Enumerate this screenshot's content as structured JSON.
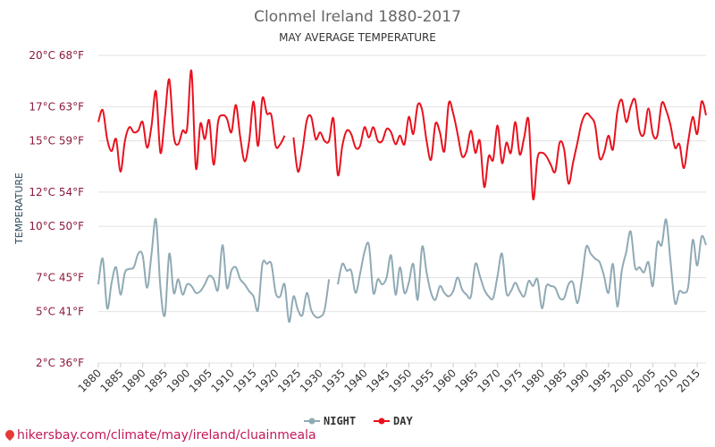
{
  "chart_data": {
    "type": "line",
    "title": "Clonmel Ireland 1880-2017",
    "subtitle": "MAY AVERAGE TEMPERATURE",
    "ylabel": "TEMPERATURE",
    "ylim": [
      2.0,
      20.0
    ],
    "y_ticks": [
      {
        "value": 20.0,
        "label": "20°C 68°F"
      },
      {
        "value": 17.0,
        "label": "17°C 63°F"
      },
      {
        "value": 15.0,
        "label": "15°C 59°F"
      },
      {
        "value": 12.0,
        "label": "12°C 54°F"
      },
      {
        "value": 10.0,
        "label": "10°C 50°F"
      },
      {
        "value": 7.0,
        "label": "7°C 45°F"
      },
      {
        "value": 5.0,
        "label": "5°C 41°F"
      },
      {
        "value": 2.0,
        "label": "2°C 36°F"
      }
    ],
    "xlim": [
      1880,
      2017
    ],
    "x_ticks": [
      "1880",
      "1885",
      "1890",
      "1895",
      "1900",
      "1905",
      "1910",
      "1915",
      "1920",
      "1925",
      "1930",
      "1935",
      "1940",
      "1945",
      "1950",
      "1955",
      "1960",
      "1965",
      "1970",
      "1975",
      "1980",
      "1985",
      "1990",
      "1995",
      "2000",
      "2005",
      "2010",
      "2015"
    ],
    "legend": {
      "position": "bottom"
    },
    "series": [
      {
        "name": "NIGHT",
        "color": "#90aab5",
        "x": [
          1880,
          1881,
          1882,
          1883,
          1884,
          1885,
          1886,
          1887,
          1888,
          1889,
          1890,
          1891,
          1892,
          1893,
          1894,
          1895,
          1896,
          1897,
          1898,
          1899,
          1900,
          1901,
          1902,
          1903,
          1904,
          1905,
          1906,
          1907,
          1908,
          1909,
          1910,
          1911,
          1912,
          1913,
          1914,
          1915,
          1916,
          1917,
          1918,
          1919,
          1920,
          1921,
          1922,
          1923,
          1924,
          1925,
          1926,
          1927,
          1928,
          1929,
          1930,
          1931,
          1932,
          1933,
          1934,
          1935,
          1936,
          1937,
          1938,
          1939,
          1940,
          1941,
          1942,
          1943,
          1944,
          1945,
          1946,
          1947,
          1948,
          1949,
          1950,
          1951,
          1952,
          1953,
          1954,
          1955,
          1956,
          1957,
          1958,
          1959,
          1960,
          1961,
          1962,
          1963,
          1964,
          1965,
          1966,
          1967,
          1968,
          1969,
          1970,
          1971,
          1972,
          1973,
          1974,
          1975,
          1976,
          1977,
          1978,
          1979,
          1980,
          1981,
          1982,
          1983,
          1984,
          1985,
          1986,
          1987,
          1988,
          1989,
          1990,
          1991,
          1992,
          1993,
          1994,
          1995,
          1996,
          1997,
          1998,
          1999,
          2000,
          2001,
          2002,
          2003,
          2004,
          2005,
          2006,
          2007,
          2008,
          2009,
          2010,
          2011,
          2012,
          2013,
          2014,
          2015,
          2016,
          2017
        ],
        "y": [
          6.6,
          8.1,
          5.2,
          6.7,
          7.6,
          6.0,
          7.3,
          7.5,
          7.6,
          8.4,
          8.3,
          6.4,
          8.4,
          10.4,
          6.4,
          4.8,
          8.4,
          6.1,
          6.9,
          6.0,
          6.6,
          6.5,
          6.1,
          6.2,
          6.6,
          7.1,
          6.9,
          6.3,
          8.9,
          6.4,
          7.4,
          7.6,
          6.9,
          6.6,
          6.2,
          5.9,
          5.1,
          7.8,
          7.8,
          7.8,
          6.1,
          5.9,
          6.6,
          4.4,
          5.9,
          5.1,
          4.8,
          6.1,
          5.1,
          4.7,
          4.7,
          5.1,
          6.9,
          null,
          6.6,
          7.8,
          7.4,
          7.4,
          6.1,
          7.2,
          8.5,
          8.9,
          6.1,
          6.9,
          6.6,
          7.0,
          8.3,
          6.0,
          7.6,
          6.1,
          6.7,
          7.8,
          5.7,
          8.8,
          7.3,
          6.1,
          5.7,
          6.5,
          6.1,
          5.9,
          6.2,
          7.0,
          6.3,
          6.0,
          5.9,
          7.8,
          7.1,
          6.3,
          5.9,
          5.8,
          7.1,
          8.4,
          6.1,
          6.2,
          6.7,
          6.2,
          5.9,
          6.8,
          6.5,
          6.9,
          5.2,
          6.5,
          6.5,
          6.4,
          5.8,
          5.8,
          6.6,
          6.7,
          5.5,
          6.9,
          8.8,
          8.4,
          8.1,
          7.9,
          7.1,
          6.1,
          7.8,
          5.3,
          7.4,
          8.5,
          9.7,
          7.6,
          7.6,
          7.3,
          7.9,
          6.5,
          9.0,
          8.9,
          10.4,
          7.9,
          5.5,
          6.2,
          6.1,
          6.5,
          9.2,
          7.7,
          9.4,
          8.9
        ]
      },
      {
        "name": "DAY",
        "color": "#e8121e",
        "x": [
          1880,
          1881,
          1882,
          1883,
          1884,
          1885,
          1886,
          1887,
          1888,
          1889,
          1890,
          1891,
          1892,
          1893,
          1894,
          1895,
          1896,
          1897,
          1898,
          1899,
          1900,
          1901,
          1902,
          1903,
          1904,
          1905,
          1906,
          1907,
          1908,
          1909,
          1910,
          1911,
          1912,
          1913,
          1914,
          1915,
          1916,
          1917,
          1918,
          1919,
          1920,
          1921,
          1922,
          1923,
          1924,
          1925,
          1926,
          1927,
          1928,
          1929,
          1930,
          1931,
          1932,
          1933,
          1934,
          1935,
          1936,
          1937,
          1938,
          1939,
          1940,
          1941,
          1942,
          1943,
          1944,
          1945,
          1946,
          1947,
          1948,
          1949,
          1950,
          1951,
          1952,
          1953,
          1954,
          1955,
          1956,
          1957,
          1958,
          1959,
          1960,
          1961,
          1962,
          1963,
          1964,
          1965,
          1966,
          1967,
          1968,
          1969,
          1970,
          1971,
          1972,
          1973,
          1974,
          1975,
          1976,
          1977,
          1978,
          1979,
          1980,
          1981,
          1982,
          1983,
          1984,
          1985,
          1986,
          1987,
          1988,
          1989,
          1990,
          1991,
          1992,
          1993,
          1994,
          1995,
          1996,
          1997,
          1998,
          1999,
          2000,
          2001,
          2002,
          2003,
          2004,
          2005,
          2006,
          2007,
          2008,
          2009,
          2010,
          2011,
          2012,
          2013,
          2014,
          2015,
          2016,
          2017
        ],
        "y": [
          16.1,
          16.8,
          15.1,
          14.4,
          15.1,
          13.2,
          15.0,
          15.8,
          15.5,
          15.6,
          16.1,
          14.6,
          15.9,
          17.9,
          14.3,
          16.4,
          18.6,
          15.3,
          14.8,
          15.6,
          15.7,
          19.1,
          13.4,
          16.0,
          15.1,
          16.2,
          13.6,
          16.1,
          16.5,
          16.3,
          15.5,
          17.1,
          15.2,
          13.8,
          15.0,
          17.3,
          14.7,
          17.5,
          16.6,
          16.5,
          14.7,
          14.8,
          15.3,
          null,
          15.2,
          13.2,
          14.4,
          16.2,
          16.4,
          15.1,
          15.5,
          15.0,
          15.0,
          16.3,
          13.0,
          14.7,
          15.6,
          15.4,
          14.6,
          14.7,
          15.8,
          15.2,
          15.8,
          15.0,
          15.0,
          15.7,
          15.5,
          14.8,
          15.3,
          14.8,
          16.4,
          15.4,
          17.1,
          16.8,
          15.0,
          13.9,
          16.0,
          15.5,
          14.4,
          17.2,
          16.6,
          15.4,
          14.1,
          14.4,
          15.6,
          14.3,
          15.0,
          12.3,
          14.1,
          13.9,
          15.9,
          13.7,
          14.9,
          14.3,
          16.1,
          14.2,
          15.2,
          16.2,
          11.6,
          14.0,
          14.3,
          14.1,
          13.6,
          13.2,
          14.9,
          14.5,
          12.5,
          13.7,
          14.9,
          16.1,
          16.6,
          16.4,
          15.9,
          14.0,
          14.3,
          15.3,
          14.5,
          16.7,
          17.4,
          16.1,
          17.0,
          17.4,
          15.6,
          15.4,
          16.9,
          15.4,
          15.3,
          17.2,
          16.8,
          15.9,
          14.6,
          14.8,
          13.4,
          15.0,
          16.4,
          15.4,
          17.3,
          16.5
        ]
      }
    ]
  },
  "footer": {
    "text": "hikersbay.com/climate/may/ireland/cluainmeala"
  }
}
